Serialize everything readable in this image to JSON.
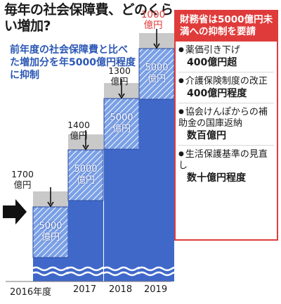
{
  "title": "毎年の社会保障費、どのくらい増加?",
  "subtitle": "前年度の社会保障費と比べた増加分を年5000億円程度に抑制",
  "chart_data": {
    "type": "bar",
    "categories": [
      "2016年度",
      "2017",
      "2018",
      "2019"
    ],
    "natural_increase": [
      {
        "value": "1700",
        "unit": "億円"
      },
      {
        "value": "1400",
        "unit": "億円"
      },
      {
        "value": "1300",
        "unit": "億円"
      },
      {
        "value": "1000",
        "unit": "億円"
      }
    ],
    "increase_label": {
      "value": "5000",
      "unit": "億円"
    },
    "colors": {
      "base": "#3f68c9",
      "increase": "#7aa0e6",
      "cut": "#c9c9c9",
      "accent": "#e03b3b"
    }
  },
  "panel": {
    "title": "財務省は5000億円未満への抑制を要請",
    "items": [
      {
        "title": "薬価引き下げ",
        "desc": "400億円超"
      },
      {
        "title": "介護保険制度の改正",
        "desc": "400億円程度"
      },
      {
        "title": "協会けんぽからの補助金の国庫返納",
        "desc": "数百億円"
      },
      {
        "title": "生活保護基準の見直し",
        "desc": "数十億円程度"
      }
    ]
  }
}
